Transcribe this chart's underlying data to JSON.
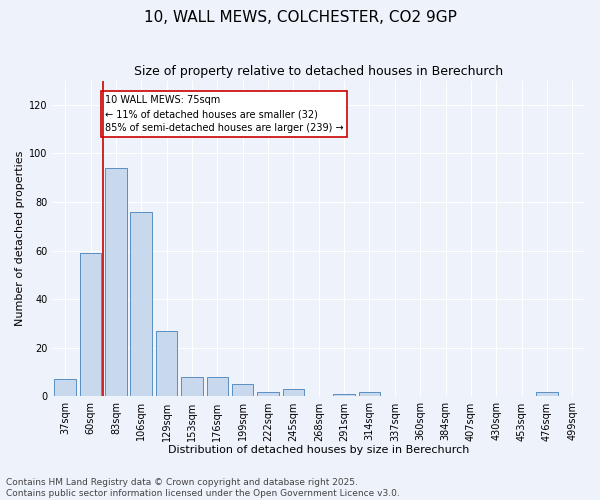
{
  "title": "10, WALL MEWS, COLCHESTER, CO2 9GP",
  "subtitle": "Size of property relative to detached houses in Berechurch",
  "xlabel": "Distribution of detached houses by size in Berechurch",
  "ylabel": "Number of detached properties",
  "categories": [
    "37sqm",
    "60sqm",
    "83sqm",
    "106sqm",
    "129sqm",
    "153sqm",
    "176sqm",
    "199sqm",
    "222sqm",
    "245sqm",
    "268sqm",
    "291sqm",
    "314sqm",
    "337sqm",
    "360sqm",
    "384sqm",
    "407sqm",
    "430sqm",
    "453sqm",
    "476sqm",
    "499sqm"
  ],
  "values": [
    7,
    59,
    94,
    76,
    27,
    8,
    8,
    5,
    2,
    3,
    0,
    1,
    2,
    0,
    0,
    0,
    0,
    0,
    0,
    2,
    0
  ],
  "bar_color": "#c9d9ed",
  "bar_edge_color": "#5a8fc2",
  "ylim": [
    0,
    130
  ],
  "yticks": [
    0,
    20,
    40,
    60,
    80,
    100,
    120
  ],
  "vline_x": 1.5,
  "vline_color": "#cc0000",
  "annotation_text": "10 WALL MEWS: 75sqm\n← 11% of detached houses are smaller (32)\n85% of semi-detached houses are larger (239) →",
  "annotation_box_color": "#cc0000",
  "footer_line1": "Contains HM Land Registry data © Crown copyright and database right 2025.",
  "footer_line2": "Contains public sector information licensed under the Open Government Licence v3.0.",
  "background_color": "#eef2fa",
  "plot_bg_color": "#eef2fa",
  "grid_color": "#ffffff",
  "title_fontsize": 11,
  "subtitle_fontsize": 9,
  "axis_label_fontsize": 8,
  "tick_fontsize": 7,
  "footer_fontsize": 6.5
}
